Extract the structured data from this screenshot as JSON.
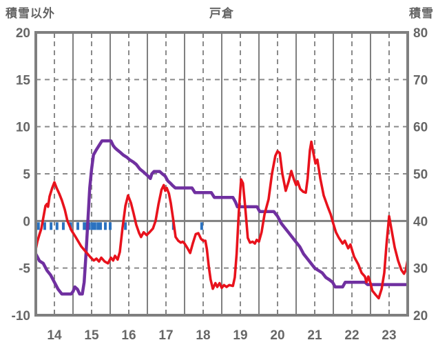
{
  "header": {
    "left_axis_title": "積雪以外",
    "title": "戸倉",
    "right_axis_title": "積雪"
  },
  "chart_data": {
    "type": "line",
    "title": "戸倉",
    "left_axis": {
      "label": "積雪以外",
      "min": -10,
      "max": 20,
      "ticks": [
        20,
        15,
        10,
        5,
        0,
        -5,
        -10
      ]
    },
    "right_axis": {
      "label": "積雪",
      "min": 20,
      "max": 80,
      "ticks": [
        80,
        70,
        60,
        50,
        40,
        30,
        20
      ]
    },
    "x_axis": {
      "labels": [
        "14",
        "15",
        "16",
        "17",
        "18",
        "19",
        "20",
        "21",
        "22",
        "23"
      ],
      "min": 14,
      "max": 24
    },
    "grid": {
      "vertical_solid_every_day": true,
      "vertical_dashed_every_half_day": true,
      "horizontal_dashed_at_left_values": [
        15,
        10,
        5,
        -5
      ],
      "zero_line_solid": true
    },
    "colors": {
      "red_line": "#e8121c",
      "purple_line": "#7030a0",
      "blue_ticks": "#2b72c0",
      "grid": "#7f7f7f",
      "grid_dashed": "#8a8a8a",
      "labels": "#666666",
      "background": "#ffffff"
    },
    "series": [
      {
        "name": "non-snow-element (red, left axis)",
        "axis": "left",
        "color": "#e8121c",
        "points": [
          [
            14.0,
            -3.0
          ],
          [
            14.04,
            -2.2
          ],
          [
            14.1,
            -1.4
          ],
          [
            14.15,
            -0.8
          ],
          [
            14.2,
            0.3
          ],
          [
            14.26,
            1.6
          ],
          [
            14.3,
            1.8
          ],
          [
            14.33,
            1.5
          ],
          [
            14.37,
            2.6
          ],
          [
            14.44,
            3.5
          ],
          [
            14.5,
            4.1
          ],
          [
            14.56,
            3.5
          ],
          [
            14.63,
            2.9
          ],
          [
            14.7,
            2.2
          ],
          [
            14.78,
            1.2
          ],
          [
            14.85,
            0.0
          ],
          [
            14.96,
            -1.0
          ],
          [
            15.07,
            -1.7
          ],
          [
            15.22,
            -2.7
          ],
          [
            15.35,
            -3.3
          ],
          [
            15.48,
            -3.9
          ],
          [
            15.56,
            -4.2
          ],
          [
            15.63,
            -4.0
          ],
          [
            15.7,
            -4.3
          ],
          [
            15.76,
            -3.9
          ],
          [
            15.85,
            -4.3
          ],
          [
            15.94,
            -4.5
          ],
          [
            16.02,
            -3.9
          ],
          [
            16.08,
            -4.2
          ],
          [
            16.13,
            -3.7
          ],
          [
            16.2,
            -4.1
          ],
          [
            16.26,
            -3.3
          ],
          [
            16.33,
            -0.8
          ],
          [
            16.41,
            1.6
          ],
          [
            16.48,
            2.7
          ],
          [
            16.56,
            1.9
          ],
          [
            16.63,
            0.8
          ],
          [
            16.7,
            -0.4
          ],
          [
            16.78,
            -1.3
          ],
          [
            16.83,
            -1.7
          ],
          [
            16.9,
            -1.2
          ],
          [
            16.98,
            -1.5
          ],
          [
            17.06,
            -1.2
          ],
          [
            17.15,
            -0.8
          ],
          [
            17.22,
            0.0
          ],
          [
            17.3,
            1.8
          ],
          [
            17.38,
            3.3
          ],
          [
            17.44,
            3.8
          ],
          [
            17.48,
            3.2
          ],
          [
            17.52,
            3.5
          ],
          [
            17.58,
            2.9
          ],
          [
            17.63,
            1.9
          ],
          [
            17.7,
            0.0
          ],
          [
            17.76,
            -1.7
          ],
          [
            17.83,
            -2.1
          ],
          [
            17.9,
            -2.3
          ],
          [
            17.95,
            -2.2
          ],
          [
            18.0,
            -2.4
          ],
          [
            18.08,
            -2.9
          ],
          [
            18.15,
            -3.4
          ],
          [
            18.22,
            -2.4
          ],
          [
            18.3,
            -1.4
          ],
          [
            18.37,
            -1.3
          ],
          [
            18.44,
            -1.9
          ],
          [
            18.5,
            -2.1
          ],
          [
            18.56,
            -2.1
          ],
          [
            18.6,
            -3.0
          ],
          [
            18.65,
            -4.8
          ],
          [
            18.7,
            -6.2
          ],
          [
            18.76,
            -7.2
          ],
          [
            18.83,
            -6.6
          ],
          [
            18.88,
            -7.0
          ],
          [
            18.94,
            -6.6
          ],
          [
            19.0,
            -7.1
          ],
          [
            19.06,
            -6.8
          ],
          [
            19.13,
            -7.0
          ],
          [
            19.2,
            -6.8
          ],
          [
            19.3,
            -6.9
          ],
          [
            19.35,
            -6.0
          ],
          [
            19.4,
            -3.5
          ],
          [
            19.46,
            1.0
          ],
          [
            19.52,
            4.4
          ],
          [
            19.57,
            4.0
          ],
          [
            19.63,
            1.5
          ],
          [
            19.7,
            -1.8
          ],
          [
            19.76,
            -2.3
          ],
          [
            19.83,
            -2.2
          ],
          [
            19.89,
            -2.4
          ],
          [
            19.94,
            -2.0
          ],
          [
            20.0,
            -2.2
          ],
          [
            20.07,
            -1.2
          ],
          [
            20.15,
            0.7
          ],
          [
            20.26,
            2.3
          ],
          [
            20.35,
            5.0
          ],
          [
            20.44,
            6.9
          ],
          [
            20.5,
            7.4
          ],
          [
            20.56,
            7.2
          ],
          [
            20.63,
            5.0
          ],
          [
            20.72,
            3.2
          ],
          [
            20.8,
            4.2
          ],
          [
            20.87,
            5.3
          ],
          [
            20.94,
            4.4
          ],
          [
            21.0,
            3.8
          ],
          [
            21.04,
            4.2
          ],
          [
            21.11,
            3.4
          ],
          [
            21.19,
            3.1
          ],
          [
            21.26,
            3.0
          ],
          [
            21.31,
            4.5
          ],
          [
            21.37,
            7.5
          ],
          [
            21.41,
            8.4
          ],
          [
            21.46,
            7.3
          ],
          [
            21.52,
            6.1
          ],
          [
            21.57,
            6.5
          ],
          [
            21.65,
            4.5
          ],
          [
            21.74,
            2.7
          ],
          [
            21.85,
            1.5
          ],
          [
            21.93,
            0.7
          ],
          [
            22.0,
            -0.3
          ],
          [
            22.07,
            -1.2
          ],
          [
            22.15,
            -1.8
          ],
          [
            22.25,
            -2.4
          ],
          [
            22.31,
            -2.1
          ],
          [
            22.4,
            -2.9
          ],
          [
            22.46,
            -2.5
          ],
          [
            22.56,
            -3.8
          ],
          [
            22.67,
            -4.6
          ],
          [
            22.76,
            -5.5
          ],
          [
            22.85,
            -5.9
          ],
          [
            22.89,
            -6.5
          ],
          [
            22.94,
            -5.9
          ],
          [
            23.0,
            -6.6
          ],
          [
            23.05,
            -7.4
          ],
          [
            23.13,
            -7.8
          ],
          [
            23.22,
            -8.2
          ],
          [
            23.3,
            -7.2
          ],
          [
            23.37,
            -5.5
          ],
          [
            23.43,
            -2.5
          ],
          [
            23.5,
            0.5
          ],
          [
            23.56,
            -0.8
          ],
          [
            23.65,
            -2.8
          ],
          [
            23.74,
            -4.2
          ],
          [
            23.83,
            -5.2
          ],
          [
            23.9,
            -5.6
          ],
          [
            23.95,
            -5.2
          ],
          [
            24.0,
            -4.1
          ]
        ]
      },
      {
        "name": "snow-depth (purple, right axis)",
        "axis": "right",
        "color": "#7030a0",
        "points": [
          [
            14.0,
            33
          ],
          [
            14.1,
            31.5
          ],
          [
            14.2,
            31
          ],
          [
            14.3,
            29.5
          ],
          [
            14.4,
            28.5
          ],
          [
            14.5,
            27
          ],
          [
            14.6,
            25.5
          ],
          [
            14.7,
            24.5
          ],
          [
            14.95,
            24.5
          ],
          [
            15.0,
            25
          ],
          [
            15.05,
            26
          ],
          [
            15.12,
            25.5
          ],
          [
            15.18,
            24.5
          ],
          [
            15.25,
            24.5
          ],
          [
            15.3,
            27
          ],
          [
            15.35,
            33
          ],
          [
            15.4,
            40
          ],
          [
            15.45,
            47
          ],
          [
            15.5,
            51
          ],
          [
            15.55,
            54
          ],
          [
            15.62,
            55
          ],
          [
            15.7,
            56
          ],
          [
            15.78,
            57
          ],
          [
            16.02,
            57
          ],
          [
            16.08,
            56
          ],
          [
            16.13,
            55.5
          ],
          [
            16.2,
            55
          ],
          [
            16.28,
            54.5
          ],
          [
            16.35,
            54
          ],
          [
            16.45,
            53.5
          ],
          [
            16.52,
            53
          ],
          [
            16.62,
            52.5
          ],
          [
            16.7,
            52
          ],
          [
            16.8,
            51
          ],
          [
            16.88,
            50.5
          ],
          [
            16.95,
            50
          ],
          [
            17.02,
            49.5
          ],
          [
            17.08,
            49
          ],
          [
            17.12,
            50
          ],
          [
            17.18,
            50.5
          ],
          [
            17.33,
            50.5
          ],
          [
            17.4,
            50
          ],
          [
            17.48,
            49.5
          ],
          [
            17.55,
            48.5
          ],
          [
            17.62,
            48
          ],
          [
            17.68,
            47.5
          ],
          [
            17.75,
            47
          ],
          [
            18.2,
            47
          ],
          [
            18.28,
            46
          ],
          [
            18.72,
            46
          ],
          [
            18.8,
            45
          ],
          [
            19.3,
            45
          ],
          [
            19.37,
            44
          ],
          [
            19.42,
            43
          ],
          [
            19.95,
            43
          ],
          [
            20.02,
            42
          ],
          [
            20.4,
            42
          ],
          [
            20.5,
            41
          ],
          [
            20.6,
            39.5
          ],
          [
            20.7,
            38.5
          ],
          [
            20.8,
            37.5
          ],
          [
            20.9,
            36.5
          ],
          [
            21.0,
            35.5
          ],
          [
            21.1,
            34.5
          ],
          [
            21.2,
            33
          ],
          [
            21.3,
            32
          ],
          [
            21.4,
            31
          ],
          [
            21.5,
            30
          ],
          [
            21.6,
            29.5
          ],
          [
            21.7,
            29
          ],
          [
            21.8,
            28
          ],
          [
            21.9,
            27.5
          ],
          [
            21.98,
            27
          ],
          [
            22.05,
            26
          ],
          [
            22.25,
            26
          ],
          [
            22.32,
            27
          ],
          [
            22.85,
            27
          ],
          [
            22.92,
            26.5
          ],
          [
            24.0,
            26.5
          ]
        ]
      },
      {
        "name": "precipitation-marks (blue ticks below zero line)",
        "axis": "left",
        "color": "#2b72c0",
        "type": "tick",
        "days": [
          14.07,
          14.24,
          14.41,
          14.57,
          14.74,
          14.94,
          15.13,
          15.3,
          15.37,
          15.44,
          15.52,
          15.59,
          15.67,
          15.74,
          15.87,
          16.0,
          16.41,
          17.7,
          18.46
        ]
      }
    ]
  }
}
